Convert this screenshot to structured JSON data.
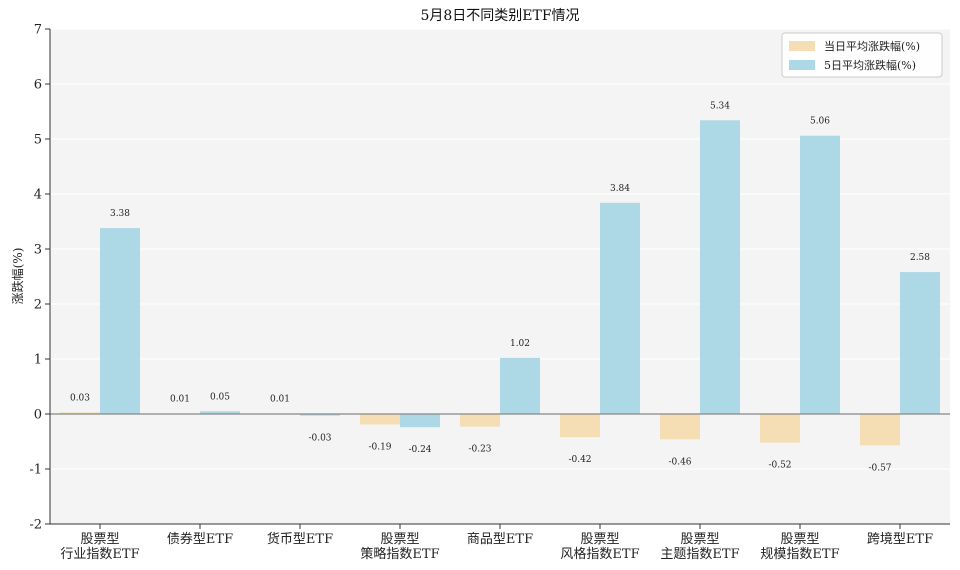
{
  "chart_data": {
    "type": "bar",
    "title": "5月8日不同类别ETF情况",
    "xlabel": "",
    "ylabel": "涨跌幅(%)",
    "ylim": [
      -2,
      7
    ],
    "yticks": [
      -2,
      -1,
      0,
      1,
      2,
      3,
      4,
      5,
      6,
      7
    ],
    "ytick_labels": [
      "-2",
      "-1",
      "0",
      "1",
      "2",
      "3",
      "4",
      "5",
      "6",
      "7"
    ],
    "categories": [
      [
        "股票型",
        "行业指数ETF"
      ],
      [
        "债券型ETF"
      ],
      [
        "货币型ETF"
      ],
      [
        "股票型",
        "策略指数ETF"
      ],
      [
        "商品型ETF"
      ],
      [
        "股票型",
        "风格指数ETF"
      ],
      [
        "股票型",
        "主题指数ETF"
      ],
      [
        "股票型",
        "规模指数ETF"
      ],
      [
        "跨境型ETF"
      ]
    ],
    "series": [
      {
        "name": "当日平均涨跌幅(%)",
        "color": "#f5deb3",
        "values": [
          0.03,
          0.01,
          0.01,
          -0.19,
          -0.23,
          -0.42,
          -0.46,
          -0.52,
          -0.57
        ],
        "labels": [
          "0.03",
          "0.01",
          "0.01",
          "-0.19",
          "-0.23",
          "-0.42",
          "-0.46",
          "-0.52",
          "-0.57"
        ]
      },
      {
        "name": "5日平均涨跌幅(%)",
        "color": "#add8e6",
        "values": [
          3.38,
          0.05,
          -0.03,
          -0.24,
          1.02,
          3.84,
          5.34,
          5.06,
          2.58
        ],
        "labels": [
          "3.38",
          "0.05",
          "-0.03",
          "-0.24",
          "1.02",
          "3.84",
          "5.34",
          "5.06",
          "2.58"
        ]
      }
    ],
    "legend_position": "top-right",
    "grid": true,
    "background": "#f4f4f4"
  }
}
